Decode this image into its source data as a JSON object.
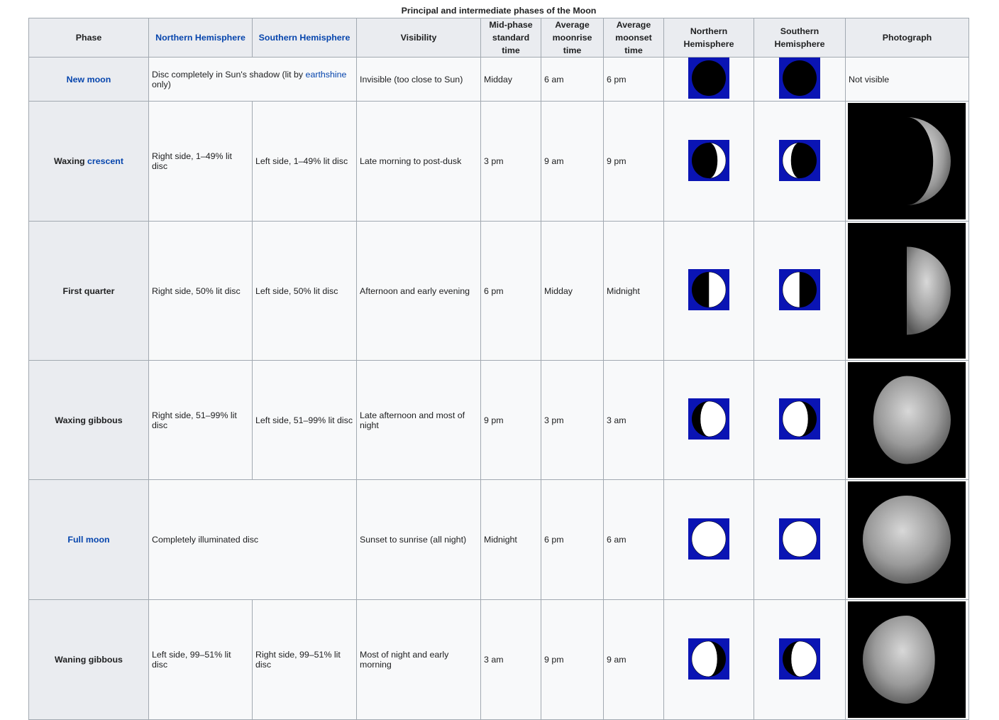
{
  "caption": "Principal and intermediate phases of the Moon",
  "headers": {
    "phase": "Phase",
    "north": "Northern Hemisphere",
    "south": "Southern Hemisphere",
    "visibility": "Visibility",
    "midphase": "Mid-phase standard time",
    "moonrise": "Average moonrise time",
    "moonset": "Average moonset time",
    "icon_north": "Northern Hemisphere",
    "icon_south": "Southern Hemisphere",
    "photo": "Photograph"
  },
  "colors": {
    "icon_background": "#0a14b4",
    "link": "#0645ad"
  },
  "rows": [
    {
      "phase_text": "",
      "phase_link": "New moon",
      "description": "Disc completely in Sun's shadow (lit by ",
      "description_link": "earthshine",
      "description_end": " only)",
      "visibility": "Invisible (too close to Sun)",
      "midphase": "Midday",
      "moonrise": "6 am",
      "moonset": "6 pm",
      "icon_north": {
        "lit": 0,
        "side": "right"
      },
      "icon_south": {
        "lit": 0,
        "side": "left"
      },
      "photo_text": "Not visible"
    },
    {
      "phase_text": "Waxing ",
      "phase_link": "crescent",
      "north": "Right side, 1–49% lit disc",
      "south": "Left side, 1–49% lit disc",
      "visibility": "Late morning to post-dusk",
      "midphase": "3 pm",
      "moonrise": "9 am",
      "moonset": "9 pm",
      "icon_north": {
        "lit": 0.25,
        "side": "right"
      },
      "icon_south": {
        "lit": 0.25,
        "side": "left"
      },
      "photo": {
        "lit": 0.2,
        "side": "right"
      }
    },
    {
      "phase_text": "First quarter",
      "north": "Right side, 50% lit disc",
      "south": "Left side, 50% lit disc",
      "visibility": "Afternoon and early evening",
      "midphase": "6 pm",
      "moonrise": "Midday",
      "moonset": "Midnight",
      "icon_north": {
        "lit": 0.5,
        "side": "right"
      },
      "icon_south": {
        "lit": 0.5,
        "side": "left"
      },
      "photo": {
        "lit": 0.5,
        "side": "right"
      }
    },
    {
      "phase_text": "Waxing gibbous",
      "north": "Right side, 51–99% lit disc",
      "south": "Left side, 51–99% lit disc",
      "visibility": "Late afternoon and most of night",
      "midphase": "9 pm",
      "moonrise": "3 pm",
      "moonset": "3 am",
      "icon_north": {
        "lit": 0.75,
        "side": "right"
      },
      "icon_south": {
        "lit": 0.75,
        "side": "left"
      },
      "photo": {
        "lit": 0.88,
        "side": "right"
      }
    },
    {
      "phase_text": "",
      "phase_link": "Full moon",
      "description": "Completely illuminated disc",
      "visibility": "Sunset to sunrise (all night)",
      "midphase": "Midnight",
      "moonrise": "6 pm",
      "moonset": "6 am",
      "icon_north": {
        "lit": 1,
        "side": "right"
      },
      "icon_south": {
        "lit": 1,
        "side": "left"
      },
      "photo": {
        "lit": 1,
        "side": "right"
      }
    },
    {
      "phase_text": "Waning gibbous",
      "north": "Left side, 99–51% lit disc",
      "south": "Right side, 99–51% lit disc",
      "visibility": "Most of night and early morning",
      "midphase": "3 am",
      "moonrise": "9 pm",
      "moonset": "9 am",
      "icon_north": {
        "lit": 0.75,
        "side": "left"
      },
      "icon_south": {
        "lit": 0.75,
        "side": "right"
      },
      "photo": {
        "lit": 0.82,
        "side": "left"
      }
    }
  ]
}
